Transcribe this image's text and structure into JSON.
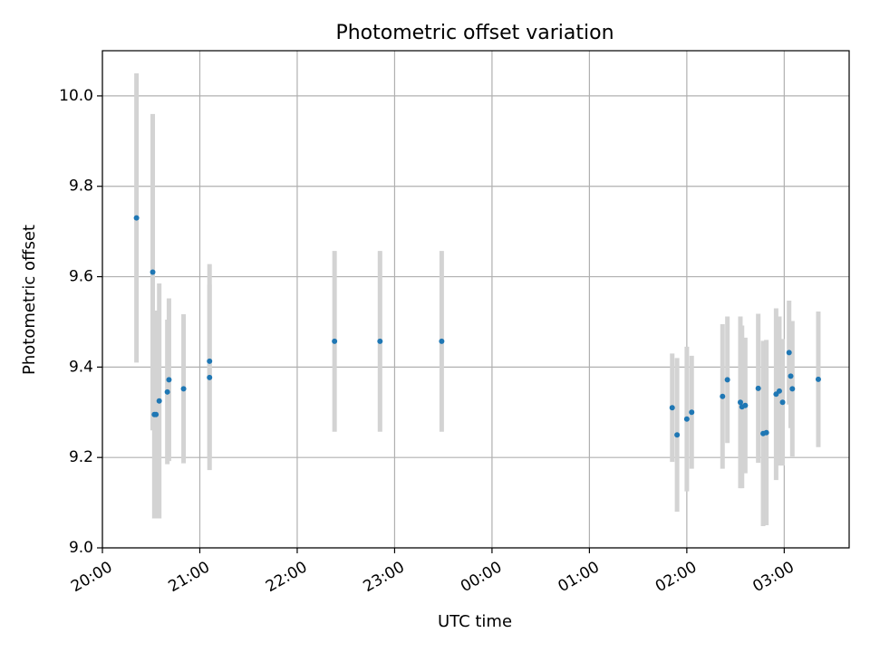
{
  "chart_data": {
    "type": "scatter",
    "title": "Photometric offset variation",
    "xlabel": "UTC time",
    "ylabel": "Photometric offset",
    "x_unit": "UTC time (HH:MM), spanning midnight",
    "xlim": [
      "20:00",
      "03:40"
    ],
    "ylim": [
      9.0,
      10.1
    ],
    "grid": true,
    "legend": "none",
    "x_ticks": [
      "20:00",
      "21:00",
      "22:00",
      "23:00",
      "00:00",
      "01:00",
      "02:00",
      "03:00"
    ],
    "y_ticks": [
      "9.0",
      "9.2",
      "9.4",
      "9.6",
      "9.8",
      "10.0"
    ],
    "colors": {
      "point": "#1f77b4",
      "errorbar": "#d3d3d3",
      "grid": "#b0b0b0"
    },
    "points": [
      {
        "x": "20:21",
        "y": 9.73,
        "err": 0.32
      },
      {
        "x": "20:31",
        "y": 9.61,
        "err": 0.35
      },
      {
        "x": "20:32",
        "y": 9.295,
        "err": 0.23
      },
      {
        "x": "20:33",
        "y": 9.295,
        "err": 0.23
      },
      {
        "x": "20:35",
        "y": 9.325,
        "err": 0.26
      },
      {
        "x": "20:40",
        "y": 9.345,
        "err": 0.16
      },
      {
        "x": "20:41",
        "y": 9.372,
        "err": 0.18
      },
      {
        "x": "20:50",
        "y": 9.352,
        "err": 0.165
      },
      {
        "x": "21:06",
        "y": 9.413,
        "err": 0.215
      },
      {
        "x": "21:06",
        "y": 9.377,
        "err": 0.205
      },
      {
        "x": "22:23",
        "y": 9.457,
        "err": 0.2
      },
      {
        "x": "22:51",
        "y": 9.457,
        "err": 0.2
      },
      {
        "x": "23:29",
        "y": 9.457,
        "err": 0.2
      },
      {
        "x": "01:51",
        "y": 9.31,
        "err": 0.12
      },
      {
        "x": "01:54",
        "y": 9.25,
        "err": 0.17
      },
      {
        "x": "02:00",
        "y": 9.285,
        "err": 0.16
      },
      {
        "x": "02:03",
        "y": 9.3,
        "err": 0.125
      },
      {
        "x": "02:22",
        "y": 9.335,
        "err": 0.16
      },
      {
        "x": "02:25",
        "y": 9.372,
        "err": 0.14
      },
      {
        "x": "02:33",
        "y": 9.322,
        "err": 0.19
      },
      {
        "x": "02:34",
        "y": 9.312,
        "err": 0.18
      },
      {
        "x": "02:36",
        "y": 9.315,
        "err": 0.15
      },
      {
        "x": "02:44",
        "y": 9.353,
        "err": 0.165
      },
      {
        "x": "02:47",
        "y": 9.253,
        "err": 0.205
      },
      {
        "x": "02:49",
        "y": 9.255,
        "err": 0.205
      },
      {
        "x": "02:55",
        "y": 9.34,
        "err": 0.19
      },
      {
        "x": "02:57",
        "y": 9.347,
        "err": 0.165
      },
      {
        "x": "02:59",
        "y": 9.322,
        "err": 0.14
      },
      {
        "x": "03:03",
        "y": 9.432,
        "err": 0.115
      },
      {
        "x": "03:04",
        "y": 9.38,
        "err": 0.115
      },
      {
        "x": "03:05",
        "y": 9.352,
        "err": 0.15
      },
      {
        "x": "03:21",
        "y": 9.373,
        "err": 0.15
      }
    ]
  }
}
